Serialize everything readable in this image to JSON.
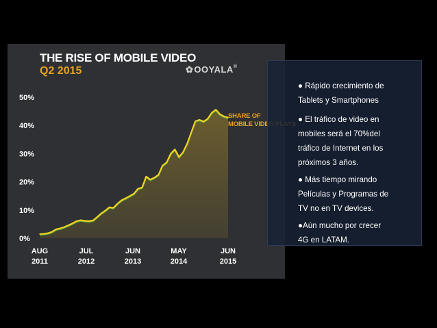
{
  "chart": {
    "title": "THE RISE OF MOBILE VIDEO",
    "subtitle": "Q2 2015",
    "brand": "OOYALA",
    "brand_icon": "flower-icon",
    "series_label_lines": [
      "SHARE OF",
      "MOBILE VIDEO PLAYS"
    ]
  },
  "chart_data": {
    "type": "area",
    "title": "THE RISE OF MOBILE VIDEO",
    "subtitle": "Q2 2015",
    "ylabel": "",
    "xlabel": "",
    "ylim": [
      0,
      50
    ],
    "y_ticks": [
      "50%",
      "40%",
      "30%",
      "20%",
      "10%",
      "0%"
    ],
    "x_ticks": [
      {
        "label": [
          "AUG",
          "2011"
        ]
      },
      {
        "label": [
          "JUL",
          "2012"
        ]
      },
      {
        "label": [
          "JUN",
          "2013"
        ]
      },
      {
        "label": [
          "MAY",
          "2014"
        ]
      },
      {
        "label": [
          "JUN",
          "2015"
        ]
      }
    ],
    "series": [
      {
        "name": "SHARE OF MOBILE VIDEO PLAYS",
        "color": "#f2d320",
        "x": [
          "2011-08",
          "2011-09",
          "2011-10",
          "2011-11",
          "2011-12",
          "2012-01",
          "2012-02",
          "2012-03",
          "2012-04",
          "2012-05",
          "2012-06",
          "2012-07",
          "2012-08",
          "2012-09",
          "2012-10",
          "2012-11",
          "2012-12",
          "2013-01",
          "2013-02",
          "2013-03",
          "2013-04",
          "2013-05",
          "2013-06",
          "2013-07",
          "2013-08",
          "2013-09",
          "2013-10",
          "2013-11",
          "2013-12",
          "2014-01",
          "2014-02",
          "2014-03",
          "2014-04",
          "2014-05",
          "2014-06",
          "2014-07",
          "2014-08",
          "2014-09",
          "2014-10",
          "2014-11",
          "2014-12",
          "2015-01",
          "2015-02",
          "2015-03",
          "2015-04",
          "2015-05",
          "2015-06"
        ],
        "values": [
          1.5,
          1.6,
          1.8,
          2.3,
          3.2,
          3.5,
          4.0,
          4.6,
          5.3,
          6.1,
          6.4,
          6.2,
          6.1,
          6.3,
          7.5,
          8.8,
          9.8,
          11.0,
          10.8,
          12.3,
          13.5,
          14.2,
          15.0,
          15.8,
          17.6,
          18.0,
          21.9,
          20.8,
          21.5,
          22.5,
          25.8,
          26.9,
          30.0,
          31.5,
          28.8,
          30.5,
          33.5,
          37.5,
          41.5,
          42.0,
          41.4,
          42.3,
          44.5,
          45.6,
          44.0,
          43.2,
          42.8
        ]
      }
    ],
    "fill_color": "#6b5d2e",
    "line_secondary_color": "#5ea83a",
    "grid": false
  },
  "notes": [
    {
      "lines": [
        "● Rápido crecimiento de",
        "Tablets y Smartphones"
      ]
    },
    {
      "lines": [
        "● El tráfico de video en",
        "mobiles será el 70%del",
        "tráfico de Internet en los",
        "próximos 3 años."
      ]
    },
    {
      "lines": [
        "● Más tiempo mirando",
        "Películas y Programas de",
        "TV no en TV devices."
      ]
    },
    {
      "lines": [
        "●Aún mucho  por crecer",
        "4G en LATAM."
      ]
    }
  ]
}
